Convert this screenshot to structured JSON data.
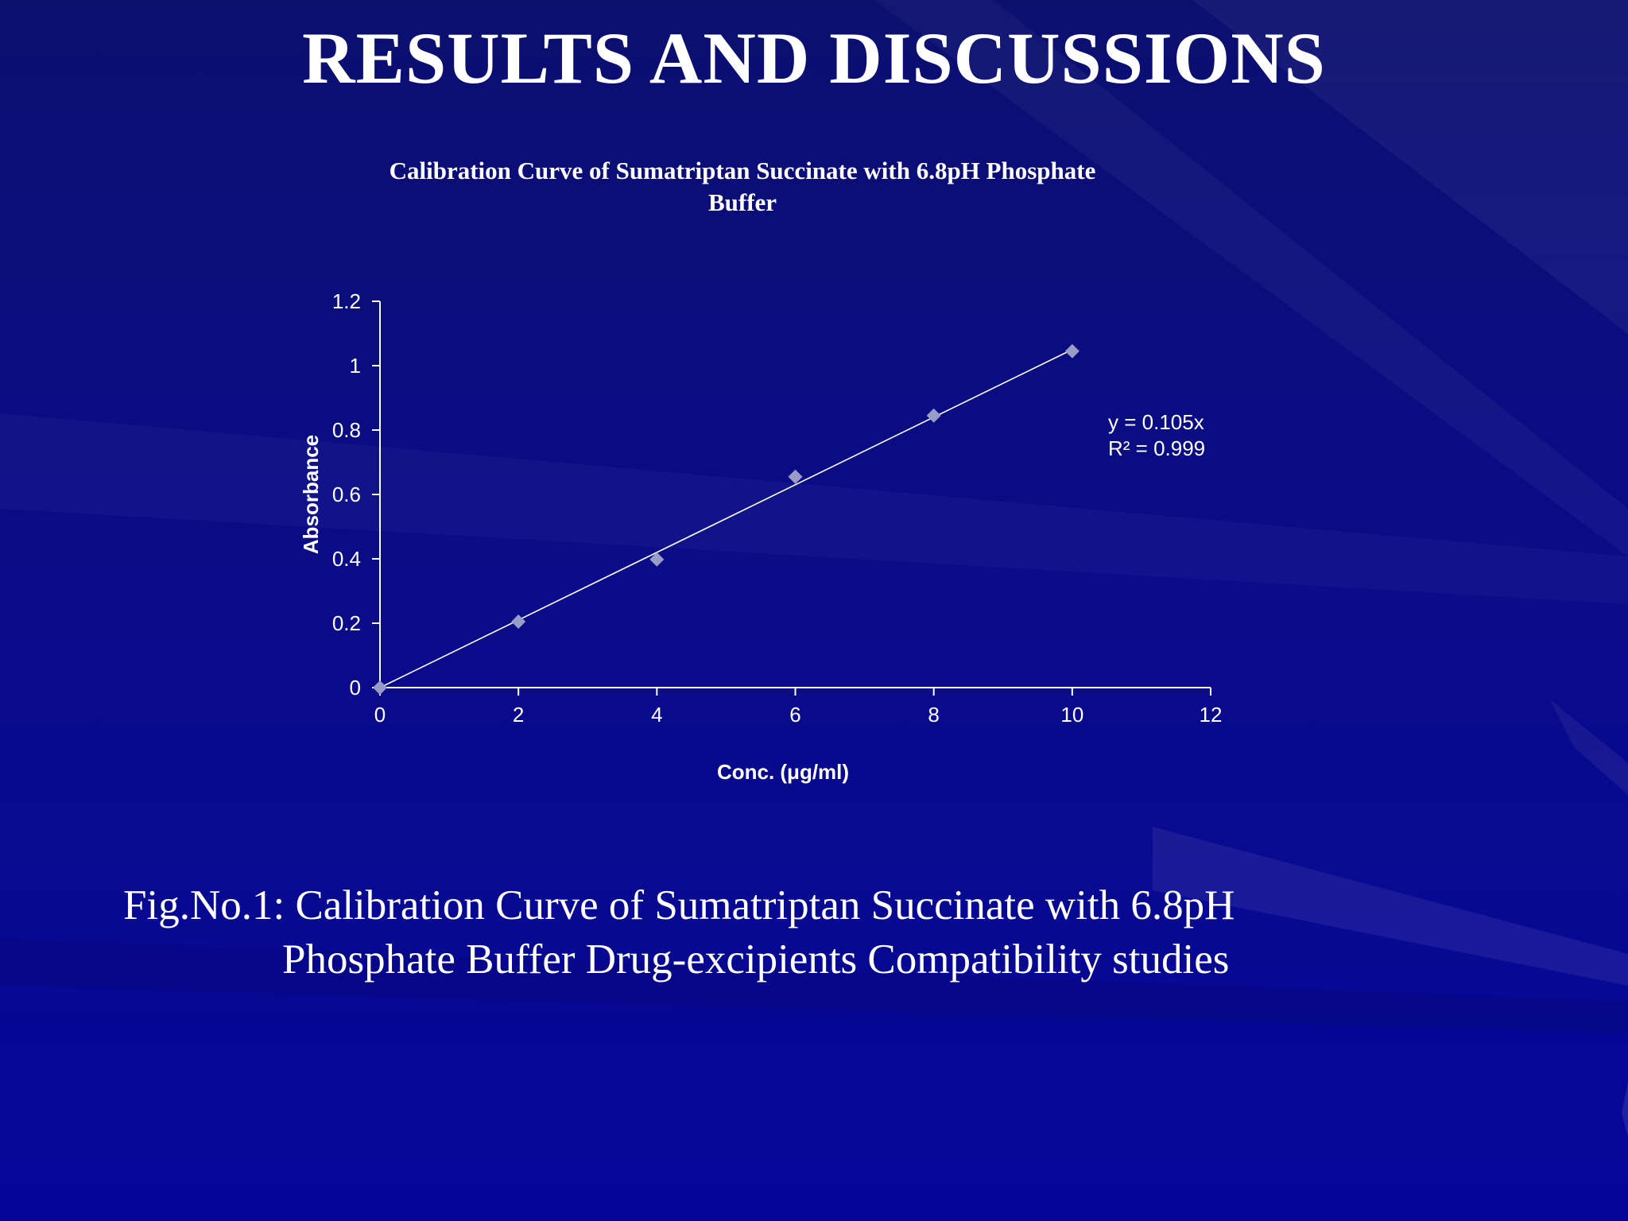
{
  "slide": {
    "title": "RESULTS AND DISCUSSIONS",
    "caption_line1": "Fig.No.1: Calibration Curve of Sumatriptan Succinate with 6.8pH",
    "caption_line2": "Phosphate Buffer Drug-excipients Compatibility studies"
  },
  "colors": {
    "background": "#080a7e",
    "text": "#ffffff",
    "marker": "#9a9cc8"
  },
  "chart_data": {
    "type": "scatter",
    "title_line1": "Calibration Curve of Sumatriptan Succinate with 6.8pH Phosphate",
    "title_line2": "Buffer",
    "xlabel": "Conc. (μg/ml)",
    "ylabel": "Absorbance",
    "xlim": [
      0,
      12
    ],
    "ylim": [
      0,
      1.2
    ],
    "x_ticks": [
      "0",
      "2",
      "4",
      "6",
      "8",
      "10",
      "12"
    ],
    "y_ticks": [
      "0",
      "0.2",
      "0.4",
      "0.6",
      "0.8",
      "1",
      "1.2"
    ],
    "series": [
      {
        "x": [
          0,
          2,
          4,
          6,
          8,
          10
        ],
        "y": [
          0,
          0.205,
          0.398,
          0.655,
          0.845,
          1.045
        ],
        "marker": "diamond"
      }
    ],
    "trendline": {
      "slope": 0.105,
      "intercept": 0,
      "x_range": [
        0,
        10
      ]
    },
    "equation": "y = 0.105x",
    "r_squared": "R² = 0.999",
    "grid": false,
    "legend": "none"
  }
}
